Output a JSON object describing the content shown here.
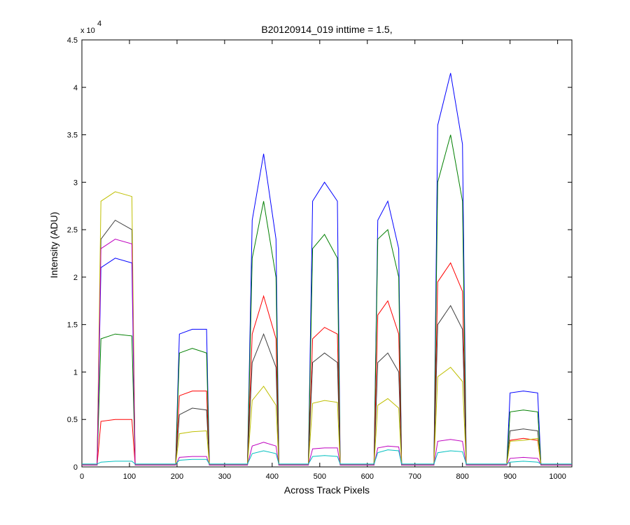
{
  "chart_data": {
    "type": "line",
    "title": "B20120914_019 inttime = 1.5,",
    "x_label": "Across Track Pixels",
    "y_label": "Intensity (ADU)",
    "y_multiplier": {
      "base": "x 10",
      "exponent": "4"
    },
    "x": [
      0,
      32,
      40,
      70,
      105,
      112,
      197,
      205,
      232,
      262,
      268,
      348,
      358,
      382,
      408,
      414,
      476,
      485,
      510,
      537,
      543,
      614,
      622,
      643,
      666,
      672,
      740,
      748,
      775,
      800,
      808,
      893,
      900,
      928,
      958,
      965,
      1030
    ],
    "series": [
      {
        "color": "#0000ff",
        "values": [
          0.02,
          0.02,
          2.1,
          2.2,
          2.15,
          0.02,
          0.02,
          1.4,
          1.45,
          1.45,
          0.02,
          0.02,
          2.6,
          3.3,
          2.4,
          0.02,
          0.02,
          2.8,
          3.0,
          2.8,
          0.02,
          0.02,
          2.6,
          2.8,
          2.3,
          0.02,
          0.02,
          3.6,
          4.15,
          3.4,
          0.02,
          0.02,
          0.78,
          0.8,
          0.78,
          0.02,
          0.02
        ]
      },
      {
        "color": "#007f00",
        "values": [
          0.02,
          0.02,
          1.35,
          1.4,
          1.38,
          0.02,
          0.02,
          1.2,
          1.25,
          1.2,
          0.02,
          0.02,
          2.2,
          2.8,
          2.0,
          0.02,
          0.02,
          2.3,
          2.45,
          2.2,
          0.02,
          0.02,
          2.4,
          2.5,
          2.0,
          0.02,
          0.02,
          3.0,
          3.5,
          2.8,
          0.02,
          0.02,
          0.58,
          0.6,
          0.58,
          0.02,
          0.02
        ]
      },
      {
        "color": "#ff0000",
        "values": [
          0.02,
          0.02,
          0.48,
          0.5,
          0.5,
          0.02,
          0.02,
          0.75,
          0.8,
          0.8,
          0.02,
          0.02,
          1.4,
          1.8,
          1.35,
          0.02,
          0.02,
          1.35,
          1.47,
          1.4,
          0.02,
          0.02,
          1.6,
          1.75,
          1.4,
          0.02,
          0.02,
          1.95,
          2.15,
          1.85,
          0.02,
          0.02,
          0.28,
          0.3,
          0.28,
          0.02,
          0.02
        ]
      },
      {
        "color": "#404040",
        "values": [
          0.02,
          0.02,
          2.4,
          2.6,
          2.5,
          0.02,
          0.02,
          0.55,
          0.62,
          0.6,
          0.02,
          0.02,
          1.1,
          1.4,
          1.05,
          0.02,
          0.02,
          1.1,
          1.2,
          1.1,
          0.02,
          0.02,
          1.1,
          1.2,
          1.0,
          0.02,
          0.02,
          1.5,
          1.7,
          1.45,
          0.02,
          0.02,
          0.38,
          0.4,
          0.38,
          0.02,
          0.02
        ]
      },
      {
        "color": "#bfbf00",
        "values": [
          0.02,
          0.02,
          2.8,
          2.9,
          2.85,
          0.02,
          0.02,
          0.35,
          0.37,
          0.38,
          0.02,
          0.02,
          0.7,
          0.85,
          0.65,
          0.02,
          0.02,
          0.67,
          0.7,
          0.68,
          0.02,
          0.02,
          0.65,
          0.72,
          0.62,
          0.02,
          0.02,
          0.95,
          1.05,
          0.9,
          0.02,
          0.02,
          0.27,
          0.28,
          0.3,
          0.02,
          0.02
        ]
      },
      {
        "color": "#bf00bf",
        "values": [
          0.02,
          0.02,
          2.3,
          2.4,
          2.35,
          0.02,
          0.02,
          0.1,
          0.11,
          0.11,
          0.02,
          0.02,
          0.22,
          0.26,
          0.22,
          0.02,
          0.02,
          0.19,
          0.2,
          0.2,
          0.02,
          0.02,
          0.2,
          0.22,
          0.21,
          0.02,
          0.02,
          0.27,
          0.29,
          0.27,
          0.02,
          0.02,
          0.09,
          0.1,
          0.09,
          0.02,
          0.02
        ]
      },
      {
        "color": "#00bfbf",
        "values": [
          0.03,
          0.03,
          0.05,
          0.06,
          0.06,
          0.03,
          0.03,
          0.07,
          0.08,
          0.08,
          0.03,
          0.03,
          0.14,
          0.17,
          0.14,
          0.03,
          0.03,
          0.11,
          0.12,
          0.11,
          0.03,
          0.03,
          0.15,
          0.18,
          0.17,
          0.03,
          0.03,
          0.15,
          0.17,
          0.16,
          0.03,
          0.03,
          0.05,
          0.06,
          0.05,
          0.03,
          0.03
        ]
      }
    ],
    "xlim": [
      0,
      1030
    ],
    "ylim": [
      0,
      4.5
    ],
    "xticks": [
      0,
      100,
      200,
      300,
      400,
      500,
      600,
      700,
      800,
      900,
      1000
    ],
    "yticks": [
      0,
      0.5,
      1,
      1.5,
      2,
      2.5,
      3,
      3.5,
      4,
      4.5
    ],
    "grid": false
  }
}
